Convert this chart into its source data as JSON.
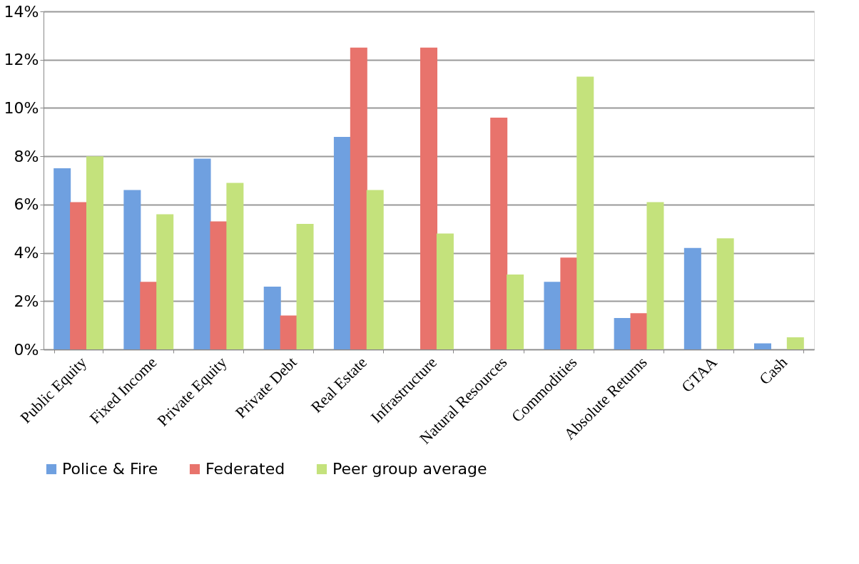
{
  "chart_data": {
    "type": "bar",
    "categories": [
      "Public Equity",
      "Fixed Income",
      "Private Equity",
      "Private Debt",
      "Real Estate",
      "Infrastructure",
      "Natural Resources",
      "Commodities",
      "Absolute Returns",
      "GTAA",
      "Cash"
    ],
    "series": [
      {
        "name": "Police & Fire",
        "color": "#6fa0e0",
        "values": [
          7.5,
          6.6,
          7.9,
          2.6,
          8.8,
          null,
          null,
          2.8,
          1.3,
          4.2,
          0.25
        ]
      },
      {
        "name": "Federated",
        "color": "#e8736c",
        "values": [
          6.1,
          2.8,
          5.3,
          1.4,
          12.5,
          12.5,
          9.6,
          3.8,
          1.5,
          null,
          null
        ]
      },
      {
        "name": "Peer group average",
        "color": "#c4e27c",
        "values": [
          8.0,
          5.6,
          6.9,
          5.2,
          6.6,
          4.8,
          3.1,
          11.3,
          6.1,
          4.6,
          0.5
        ]
      }
    ],
    "ylim": [
      0,
      14
    ],
    "yticks": [
      {
        "value": 0,
        "label": "0%"
      },
      {
        "value": 2,
        "label": "2%"
      },
      {
        "value": 4,
        "label": "4%"
      },
      {
        "value": 6,
        "label": "6%"
      },
      {
        "value": 8,
        "label": "8%"
      },
      {
        "value": 10,
        "label": "10%"
      },
      {
        "value": 12,
        "label": "12%"
      },
      {
        "value": 14,
        "label": "14%"
      }
    ],
    "grid": "y",
    "legend": "bottom"
  }
}
